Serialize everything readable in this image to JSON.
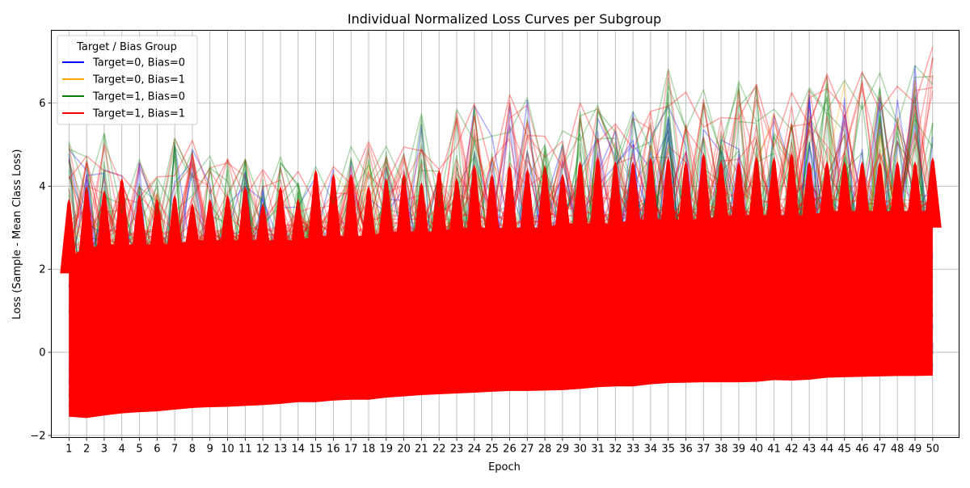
{
  "chart_data": {
    "type": "line",
    "title": "Individual Normalized Loss Curves per Subgroup",
    "xlabel": "Epoch",
    "ylabel": "Loss (Sample - Mean Class Loss)",
    "x": [
      1,
      2,
      3,
      4,
      5,
      6,
      7,
      8,
      9,
      10,
      11,
      12,
      13,
      14,
      15,
      16,
      17,
      18,
      19,
      20,
      21,
      22,
      23,
      24,
      25,
      26,
      27,
      28,
      29,
      30,
      31,
      32,
      33,
      34,
      35,
      36,
      37,
      38,
      39,
      40,
      41,
      42,
      43,
      44,
      45,
      46,
      47,
      48,
      49,
      50
    ],
    "xlim": [
      0,
      51.5
    ],
    "ylim": [
      -2.05,
      7.75
    ],
    "yticks": [
      -2,
      0,
      2,
      4,
      6
    ],
    "grid": true,
    "legend": {
      "title": "Target / Bias Group",
      "placement": "upper-left"
    },
    "series": [
      {
        "name": "Target=0, Bias=0",
        "color": "#0000ff"
      },
      {
        "name": "Target=0, Bias=1",
        "color": "#ffa500"
      },
      {
        "name": "Target=1, Bias=0",
        "color": "#008000"
      },
      {
        "name": "Target=1, Bias=1",
        "color": "#ff0000"
      }
    ],
    "lower_envelope": [
      -1.55,
      -1.58,
      -1.52,
      -1.47,
      -1.44,
      -1.42,
      -1.38,
      -1.34,
      -1.32,
      -1.31,
      -1.29,
      -1.27,
      -1.24,
      -1.2,
      -1.2,
      -1.16,
      -1.14,
      -1.14,
      -1.09,
      -1.06,
      -1.03,
      -1.01,
      -0.99,
      -0.97,
      -0.95,
      -0.93,
      -0.93,
      -0.92,
      -0.91,
      -0.88,
      -0.84,
      -0.82,
      -0.82,
      -0.77,
      -0.74,
      -0.73,
      -0.72,
      -0.72,
      -0.72,
      -0.71,
      -0.67,
      -0.68,
      -0.66,
      -0.61,
      -0.6,
      -0.59,
      -0.58,
      -0.57,
      -0.57,
      -0.56
    ],
    "peak_envelope": [
      5.07,
      4.72,
      5.27,
      4.25,
      4.64,
      4.22,
      5.15,
      5.1,
      4.72,
      4.65,
      4.64,
      4.4,
      4.7,
      4.35,
      4.47,
      4.47,
      4.95,
      5.07,
      4.96,
      4.94,
      5.75,
      4.4,
      5.85,
      5.98,
      5.2,
      6.2,
      6.12,
      5.2,
      5.33,
      6.0,
      5.95,
      5.5,
      5.8,
      5.8,
      6.82,
      6.26,
      6.32,
      5.65,
      6.52,
      6.45,
      5.85,
      6.25,
      6.36,
      6.7,
      6.55,
      6.75,
      6.72,
      6.4,
      6.9,
      7.35
    ],
    "dense_top": [
      2.3,
      2.5,
      2.6,
      2.6,
      2.6,
      2.6,
      2.6,
      2.7,
      2.7,
      2.7,
      2.7,
      2.7,
      2.7,
      2.7,
      2.8,
      2.8,
      2.8,
      2.8,
      2.9,
      2.9,
      2.9,
      2.9,
      3.0,
      3.0,
      3.0,
      3.0,
      3.0,
      3.0,
      3.1,
      3.1,
      3.1,
      3.1,
      3.2,
      3.2,
      3.2,
      3.2,
      3.2,
      3.3,
      3.3,
      3.3,
      3.3,
      3.3,
      3.3,
      3.4,
      3.4,
      3.4,
      3.4,
      3.4,
      3.4,
      3.4
    ],
    "spike_peaks": [
      3.7,
      4.0,
      3.9,
      4.2,
      3.8,
      3.7,
      3.8,
      3.6,
      3.7,
      3.8,
      4.0,
      3.6,
      4.0,
      3.7,
      4.4,
      4.3,
      4.3,
      4.0,
      4.2,
      4.3,
      4.1,
      4.4,
      4.2,
      4.5,
      4.3,
      4.5,
      4.4,
      4.5,
      4.3,
      4.6,
      4.7,
      4.6,
      4.6,
      4.7,
      4.7,
      4.6,
      4.8,
      4.6,
      4.6,
      4.7,
      4.7,
      4.8,
      4.6,
      4.6,
      4.6,
      4.6,
      4.6,
      4.6,
      4.6,
      4.7
    ]
  }
}
